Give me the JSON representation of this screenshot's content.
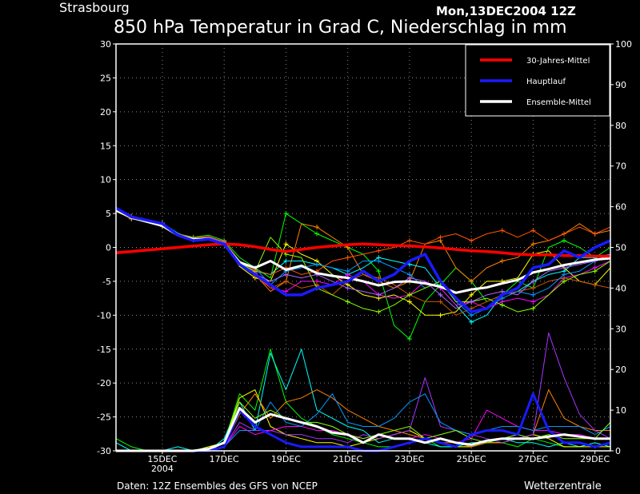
{
  "header": {
    "station": "Strasbourg",
    "run": "Mon,13DEC2004 12Z",
    "title": "850 hPa Temperatur in Grad C, Niederschlag in mm"
  },
  "footer": {
    "source": "Daten: 12Z Ensembles des GFS von NCEP",
    "brand": "Wetterzentrale"
  },
  "legend": [
    {
      "label": "30-Jahres-Mittel",
      "color": "#ff0000"
    },
    {
      "label": "Hauptlauf",
      "color": "#1a1aff"
    },
    {
      "label": "Ensemble-Mittel",
      "color": "#ffffff"
    }
  ],
  "axes": {
    "left_ticks": [
      "30",
      "25",
      "20",
      "15",
      "10",
      "5",
      "0",
      "-5",
      "-10",
      "-15",
      "-20",
      "-25",
      "-30"
    ],
    "right_ticks": [
      "100",
      "90",
      "80",
      "70",
      "60",
      "50",
      "40",
      "30",
      "20",
      "10",
      "0"
    ],
    "x_ticks": [
      {
        "day": 15,
        "label": "15DEC",
        "sub": "2004"
      },
      {
        "day": 17,
        "label": "17DEC",
        "sub": ""
      },
      {
        "day": 19,
        "label": "19DEC",
        "sub": ""
      },
      {
        "day": 21,
        "label": "21DEC",
        "sub": ""
      },
      {
        "day": 23,
        "label": "23DEC",
        "sub": ""
      },
      {
        "day": 25,
        "label": "25DEC",
        "sub": ""
      },
      {
        "day": 27,
        "label": "27DEC",
        "sub": ""
      },
      {
        "day": 29,
        "label": "29DEC",
        "sub": ""
      }
    ]
  },
  "chart_data": {
    "type": "line",
    "x_unit": "day of December 2004",
    "x": [
      13.5,
      14,
      14.5,
      15,
      15.5,
      16,
      16.5,
      17,
      17.5,
      18,
      18.5,
      19,
      19.5,
      20,
      20.5,
      21,
      21.5,
      22,
      22.5,
      23,
      23.5,
      24,
      24.5,
      25,
      25.5,
      26,
      26.5,
      27,
      27.5,
      28,
      28.5,
      29,
      29.5
    ],
    "ylim_temp": [
      -30,
      30
    ],
    "ylim_precip": [
      0,
      100
    ],
    "grid": true,
    "legend_position": "top-right",
    "series": [
      {
        "name": "30-Jahres-Mittel",
        "axis": "temp",
        "color": "#ff0000",
        "width": 3.5,
        "values": [
          -0.8,
          -0.6,
          -0.4,
          -0.2,
          0,
          0.2,
          0.4,
          0.5,
          0.4,
          0.1,
          -0.3,
          -0.6,
          -0.3,
          0,
          0.2,
          0.4,
          0.5,
          0.4,
          0.3,
          0.2,
          0.1,
          -0.1,
          -0.3,
          -0.5,
          -0.6,
          -0.8,
          -1,
          -1.1,
          -1.1,
          -1.2,
          -1.2,
          -1.3,
          -1.3
        ]
      },
      {
        "name": "Hauptlauf",
        "axis": "temp",
        "color": "#1a1aff",
        "width": 3.5,
        "values": [
          5.8,
          4.5,
          4,
          3.5,
          1.8,
          1,
          1.2,
          0.5,
          -2.5,
          -4,
          -5.5,
          -7,
          -7,
          -6,
          -5.5,
          -5,
          -3.5,
          -5,
          -4,
          -2,
          -1,
          -5,
          -7.5,
          -9.5,
          -9,
          -7,
          -6,
          -3,
          -2.5,
          -0.5,
          -1.5,
          0,
          1
        ]
      },
      {
        "name": "Ensemble-Mittel",
        "axis": "temp",
        "color": "#ffffff",
        "width": 3,
        "values": [
          5.5,
          4.4,
          3.8,
          3.2,
          1.8,
          1.2,
          1.2,
          0.5,
          -2.2,
          -3,
          -2,
          -3.3,
          -2.7,
          -3.8,
          -4.2,
          -4.5,
          -5,
          -5.6,
          -5.1,
          -5,
          -5.3,
          -5.8,
          -6.7,
          -6.2,
          -5.9,
          -5.3,
          -4.8,
          -3.7,
          -3.2,
          -2.6,
          -2.2,
          -1.8,
          -1.6
        ]
      },
      {
        "axis": "temp",
        "color": "#00ff00",
        "width": 1,
        "values": [
          5.5,
          4.5,
          3.8,
          3.3,
          2,
          1.5,
          1.8,
          1,
          -1.5,
          -3,
          -4.5,
          5,
          3.5,
          2,
          1,
          0,
          -1,
          -3.5,
          -11.5,
          -13.5,
          -8,
          -5.5,
          -3,
          -5,
          -8,
          -7,
          -5,
          -6,
          0,
          1,
          0,
          -1.5,
          0
        ]
      },
      {
        "axis": "temp",
        "color": "#ff8000",
        "width": 1,
        "values": [
          5.4,
          4.2,
          3.9,
          3.4,
          1.9,
          1.4,
          1.5,
          0.5,
          -2,
          -4,
          -6.5,
          -5,
          3.5,
          3,
          1.5,
          0,
          -4,
          -5,
          -6,
          -5,
          0.5,
          1,
          -3,
          -5,
          -3,
          -2,
          -1.5,
          0.5,
          1,
          2,
          3.5,
          2,
          2.5
        ]
      },
      {
        "axis": "temp",
        "color": "#00ffff",
        "width": 1,
        "values": [
          5.6,
          4.6,
          4.1,
          3.6,
          2.1,
          1.2,
          1.4,
          0.8,
          -2.5,
          -3.5,
          -4,
          -2,
          -2,
          -2.5,
          -3,
          -4,
          -3,
          -1.5,
          -2,
          -2.5,
          -3,
          -6,
          -8.5,
          -11,
          -10,
          -7,
          -6.5,
          -5,
          -4,
          -3.5,
          -1.5,
          -1.5,
          -1
        ]
      },
      {
        "axis": "temp",
        "color": "#ffff00",
        "width": 1,
        "values": [
          5.3,
          4.3,
          3.7,
          3.1,
          1.7,
          1.1,
          1.3,
          0.6,
          -2.8,
          -4.5,
          -5,
          0.5,
          -1,
          -2,
          -4,
          -5.5,
          -7,
          -7.5,
          -7,
          -8,
          -10,
          -10,
          -9.5,
          -7,
          -5,
          -5,
          -4.5,
          -1,
          -0.5,
          -3,
          -5,
          -5.5,
          -3
        ]
      },
      {
        "axis": "temp",
        "color": "#ff00ff",
        "width": 1,
        "values": [
          5.7,
          4.4,
          3.9,
          3.5,
          1.8,
          1.3,
          1.6,
          0.7,
          -2.3,
          -3.8,
          -6,
          -6.5,
          -5,
          -5,
          -5.5,
          -4,
          -5,
          -7,
          -7.5,
          -7,
          -5,
          -6,
          -8.5,
          -8,
          -9,
          -8,
          -7.5,
          -8,
          -7,
          -4.5,
          -4,
          -3,
          -2
        ]
      },
      {
        "axis": "temp",
        "color": "#cc5500",
        "width": 1,
        "values": [
          5.5,
          4.6,
          4,
          3.4,
          2,
          1.3,
          1.5,
          0.9,
          -2,
          -4.2,
          -6,
          -5,
          -6,
          -5.5,
          -7,
          -5,
          -4,
          -4.5,
          -5.5,
          -7,
          -8,
          -8,
          -10,
          -9,
          -8,
          -7,
          -6.5,
          -6,
          -5,
          -4.5,
          -5,
          -5.5,
          -6
        ]
      },
      {
        "axis": "temp",
        "color": "#0099ff",
        "width": 1,
        "values": [
          5.6,
          4.4,
          3.9,
          3.4,
          1.9,
          1.1,
          1.4,
          0.6,
          -2.5,
          -3,
          -5.5,
          -3.5,
          -3,
          -2.5,
          -3,
          -3.5,
          -2,
          -2,
          -3,
          -4,
          -6,
          -5,
          -8,
          -10,
          -9,
          -7.5,
          -6.5,
          -7,
          -6,
          -4,
          -3.5,
          -2,
          -1.5
        ]
      },
      {
        "axis": "temp",
        "color": "#88ff00",
        "width": 1,
        "values": [
          5.4,
          4.3,
          3.8,
          3.3,
          1.8,
          1.2,
          1.4,
          0.6,
          -2.2,
          -3.6,
          1.5,
          -1,
          -1.5,
          -6,
          -7,
          -8,
          -9,
          -9.5,
          -8.5,
          -7,
          -6,
          -5,
          -8,
          -8,
          -7.5,
          -8.5,
          -9.5,
          -9,
          -7,
          -5,
          -4,
          -3.5,
          -2
        ]
      },
      {
        "axis": "temp",
        "color": "#ff5500",
        "width": 1,
        "values": [
          5.6,
          4.5,
          4.1,
          3.5,
          2,
          1.4,
          1.6,
          0.8,
          -2,
          -3.4,
          -4,
          -3,
          -4,
          -3.5,
          -2,
          -1.5,
          -1,
          -0.5,
          0,
          1,
          0.5,
          1.5,
          2,
          1,
          2,
          2.5,
          1.5,
          2.5,
          1,
          2,
          3,
          2,
          3
        ]
      },
      {
        "axis": "temp",
        "color": "#aa66ff",
        "width": 1,
        "values": [
          5.5,
          4.4,
          3.9,
          3.3,
          1.9,
          1.2,
          1.5,
          0.7,
          -2.4,
          -3.9,
          -5,
          -4,
          -4.5,
          -4,
          -5,
          -6,
          -6.5,
          -7,
          -6,
          -4.5,
          -5,
          -7,
          -9,
          -8,
          -7,
          -6.5,
          -7,
          -5,
          -3.5,
          -3,
          -2.5,
          -2,
          -1
        ]
      },
      {
        "name": "Hauptlauf (Niederschlag)",
        "axis": "precip",
        "color": "#1a1aff",
        "width": 3,
        "values": [
          0,
          0,
          0,
          0,
          0,
          0,
          0,
          1,
          10,
          6,
          4,
          2,
          1,
          1,
          1,
          1,
          0,
          0,
          1,
          2,
          3,
          2,
          1,
          4,
          5,
          5,
          4,
          14,
          5,
          2,
          2,
          1,
          2
        ]
      },
      {
        "name": "Ensemble-Mittel (Niederschlag)",
        "axis": "precip",
        "color": "#ffffff",
        "width": 3,
        "values": [
          0,
          0,
          0,
          0,
          0,
          0,
          0.5,
          2,
          10.5,
          7,
          9,
          8,
          7,
          6,
          4.5,
          4,
          2,
          4,
          3,
          3,
          2,
          3,
          2,
          1.5,
          2.5,
          3,
          3,
          3,
          3.5,
          4,
          3.5,
          3,
          3
        ]
      },
      {
        "axis": "precip",
        "color": "#00ff00",
        "width": 1,
        "values": [
          3,
          1,
          0,
          0,
          0,
          0,
          1,
          2,
          14,
          10,
          25,
          12,
          8,
          6,
          4,
          3,
          2,
          1,
          1,
          2,
          3,
          1,
          1,
          1,
          2,
          2,
          1,
          3,
          2,
          1,
          1,
          2,
          1
        ]
      },
      {
        "axis": "precip",
        "color": "#00ffff",
        "width": 1,
        "values": [
          2,
          0,
          0,
          0,
          1,
          0,
          0,
          3,
          12,
          5,
          24,
          15,
          25,
          10,
          8,
          6,
          5,
          2,
          3,
          3,
          2,
          1,
          1,
          2,
          2,
          3,
          2,
          2,
          1,
          2,
          1,
          2,
          1
        ]
      },
      {
        "axis": "precip",
        "color": "#ffff00",
        "width": 1,
        "values": [
          0,
          0,
          0,
          0,
          0,
          0,
          1,
          2,
          13,
          15,
          6,
          4,
          3,
          2,
          2,
          1,
          2,
          3,
          4,
          5,
          3,
          2,
          1,
          1,
          2,
          2,
          3,
          4,
          3,
          1,
          1,
          1,
          1
        ]
      },
      {
        "axis": "precip",
        "color": "#ff8000",
        "width": 1,
        "values": [
          0,
          0,
          0,
          0,
          0,
          0,
          0,
          1,
          9,
          14,
          8,
          12,
          13,
          15,
          13,
          10,
          8,
          6,
          5,
          4,
          3,
          2,
          2,
          1,
          2,
          2,
          3,
          4,
          15,
          8,
          6,
          5,
          5
        ]
      },
      {
        "axis": "precip",
        "color": "#aa33ff",
        "width": 1,
        "values": [
          0,
          0,
          0,
          0,
          0,
          0,
          0,
          1,
          7,
          5,
          5,
          4,
          4,
          3,
          3,
          2,
          4,
          3,
          4,
          5,
          18,
          6,
          5,
          4,
          3,
          2,
          3,
          4,
          29,
          18,
          9,
          5,
          3
        ]
      },
      {
        "axis": "precip",
        "color": "#ff00ff",
        "width": 1,
        "values": [
          0,
          0,
          0,
          0,
          0,
          0,
          0,
          1,
          6,
          4,
          5,
          6,
          6,
          5,
          5,
          4,
          3,
          4,
          3,
          3,
          4,
          3,
          2,
          3,
          10,
          8,
          6,
          5,
          5,
          4,
          4,
          3,
          3
        ]
      },
      {
        "axis": "precip",
        "color": "#0099ff",
        "width": 1,
        "values": [
          0,
          0,
          0,
          0,
          0,
          0,
          0,
          1,
          5,
          5,
          12,
          7,
          6,
          9,
          14,
          7,
          6,
          6,
          8,
          12,
          14,
          7,
          5,
          4,
          5,
          6,
          6,
          5,
          6,
          6,
          6,
          4,
          6
        ]
      },
      {
        "axis": "precip",
        "color": "#88ff00",
        "width": 1,
        "values": [
          0,
          0,
          0,
          0,
          0,
          0,
          0,
          2,
          12,
          8,
          10,
          8,
          7,
          7,
          6,
          4,
          3,
          4,
          5,
          6,
          3,
          4,
          5,
          3,
          2,
          3,
          4,
          3,
          4,
          3,
          3,
          3,
          7
        ]
      }
    ]
  }
}
